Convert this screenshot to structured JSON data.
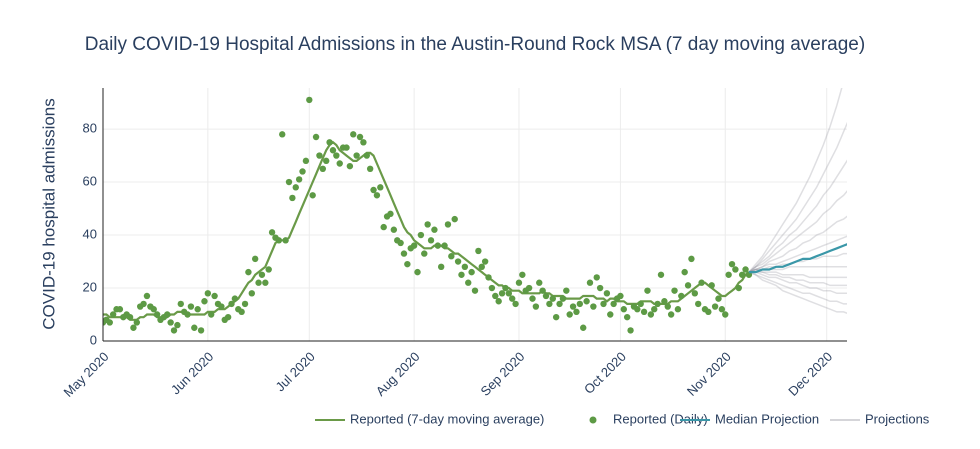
{
  "chart_data": {
    "type": "line",
    "title": "Daily COVID-19 Hospital Admissions in the Austin-Round Rock MSA (7 day moving average)",
    "y_label": "COVID-19 hospital admissions",
    "grid": true,
    "legend": "bottom",
    "xlim": [
      "2020-05-01",
      "2020-12-07"
    ],
    "xticks": [
      {
        "value": "2020-05-01",
        "label": "May 2020"
      },
      {
        "value": "2020-06-01",
        "label": "Jun 2020"
      },
      {
        "value": "2020-07-01",
        "label": "Jul 2020"
      },
      {
        "value": "2020-08-01",
        "label": "Aug 2020"
      },
      {
        "value": "2020-09-01",
        "label": "Sep 2020"
      },
      {
        "value": "2020-10-01",
        "label": "Oct 2020"
      },
      {
        "value": "2020-11-01",
        "label": "Nov 2020"
      },
      {
        "value": "2020-12-01",
        "label": "Dec 2020"
      }
    ],
    "ylim": [
      0,
      95.5
    ],
    "yticks": [
      0,
      20,
      40,
      60,
      80
    ],
    "x": [
      "2020-05-01",
      "2020-05-02",
      "2020-05-03",
      "2020-05-04",
      "2020-05-05",
      "2020-05-06",
      "2020-05-07",
      "2020-05-08",
      "2020-05-09",
      "2020-05-10",
      "2020-05-11",
      "2020-05-12",
      "2020-05-13",
      "2020-05-14",
      "2020-05-15",
      "2020-05-16",
      "2020-05-17",
      "2020-05-18",
      "2020-05-19",
      "2020-05-20",
      "2020-05-21",
      "2020-05-22",
      "2020-05-23",
      "2020-05-24",
      "2020-05-25",
      "2020-05-26",
      "2020-05-27",
      "2020-05-28",
      "2020-05-29",
      "2020-05-30",
      "2020-05-31",
      "2020-06-01",
      "2020-06-02",
      "2020-06-03",
      "2020-06-04",
      "2020-06-05",
      "2020-06-06",
      "2020-06-07",
      "2020-06-08",
      "2020-06-09",
      "2020-06-10",
      "2020-06-11",
      "2020-06-12",
      "2020-06-13",
      "2020-06-14",
      "2020-06-15",
      "2020-06-16",
      "2020-06-17",
      "2020-06-18",
      "2020-06-19",
      "2020-06-20",
      "2020-06-21",
      "2020-06-22",
      "2020-06-23",
      "2020-06-24",
      "2020-06-25",
      "2020-06-26",
      "2020-06-27",
      "2020-06-28",
      "2020-06-29",
      "2020-06-30",
      "2020-07-01",
      "2020-07-02",
      "2020-07-03",
      "2020-07-04",
      "2020-07-05",
      "2020-07-06",
      "2020-07-07",
      "2020-07-08",
      "2020-07-09",
      "2020-07-10",
      "2020-07-11",
      "2020-07-12",
      "2020-07-13",
      "2020-07-14",
      "2020-07-15",
      "2020-07-16",
      "2020-07-17",
      "2020-07-18",
      "2020-07-19",
      "2020-07-20",
      "2020-07-21",
      "2020-07-22",
      "2020-07-23",
      "2020-07-24",
      "2020-07-25",
      "2020-07-26",
      "2020-07-27",
      "2020-07-28",
      "2020-07-29",
      "2020-07-30",
      "2020-07-31",
      "2020-08-01",
      "2020-08-02",
      "2020-08-03",
      "2020-08-04",
      "2020-08-05",
      "2020-08-06",
      "2020-08-07",
      "2020-08-08",
      "2020-08-09",
      "2020-08-10",
      "2020-08-11",
      "2020-08-12",
      "2020-08-13",
      "2020-08-14",
      "2020-08-15",
      "2020-08-16",
      "2020-08-17",
      "2020-08-18",
      "2020-08-19",
      "2020-08-20",
      "2020-08-21",
      "2020-08-22",
      "2020-08-23",
      "2020-08-24",
      "2020-08-25",
      "2020-08-26",
      "2020-08-27",
      "2020-08-28",
      "2020-08-29",
      "2020-08-30",
      "2020-08-31",
      "2020-09-01",
      "2020-09-02",
      "2020-09-03",
      "2020-09-04",
      "2020-09-05",
      "2020-09-06",
      "2020-09-07",
      "2020-09-08",
      "2020-09-09",
      "2020-09-10",
      "2020-09-11",
      "2020-09-12",
      "2020-09-13",
      "2020-09-14",
      "2020-09-15",
      "2020-09-16",
      "2020-09-17",
      "2020-09-18",
      "2020-09-19",
      "2020-09-20",
      "2020-09-21",
      "2020-09-22",
      "2020-09-23",
      "2020-09-24",
      "2020-09-25",
      "2020-09-26",
      "2020-09-27",
      "2020-09-28",
      "2020-09-29",
      "2020-09-30",
      "2020-10-01",
      "2020-10-02",
      "2020-10-03",
      "2020-10-04",
      "2020-10-05",
      "2020-10-06",
      "2020-10-07",
      "2020-10-08",
      "2020-10-09",
      "2020-10-10",
      "2020-10-11",
      "2020-10-12",
      "2020-10-13",
      "2020-10-14",
      "2020-10-15",
      "2020-10-16",
      "2020-10-17",
      "2020-10-18",
      "2020-10-19",
      "2020-10-20",
      "2020-10-21",
      "2020-10-22",
      "2020-10-23",
      "2020-10-24",
      "2020-10-25",
      "2020-10-26",
      "2020-10-27",
      "2020-10-28",
      "2020-10-29",
      "2020-10-30",
      "2020-10-31",
      "2020-11-01",
      "2020-11-02",
      "2020-11-03",
      "2020-11-04",
      "2020-11-05",
      "2020-11-06",
      "2020-11-07",
      "2020-11-08"
    ],
    "series": [
      {
        "name": "Reported (7-day moving average)",
        "type": "line",
        "color": "#6a9a48",
        "values": [
          10,
          10,
          9,
          9,
          9,
          9,
          9,
          9,
          8,
          8,
          8,
          9,
          9,
          10,
          10,
          10,
          9,
          9,
          9,
          9,
          10,
          10,
          11,
          11,
          11,
          10,
          10,
          10,
          10,
          10,
          10,
          11,
          11,
          11,
          12,
          12,
          12,
          13,
          14,
          15,
          16,
          18,
          20,
          22,
          23,
          25,
          26,
          27,
          28,
          31,
          34,
          37,
          38,
          38,
          38,
          39,
          42,
          45,
          48,
          51,
          54,
          57,
          60,
          63,
          66,
          69,
          72,
          74,
          75,
          74,
          72,
          71,
          70,
          69,
          68,
          68,
          69,
          70,
          71,
          71,
          70,
          67,
          64,
          61,
          58,
          55,
          52,
          49,
          46,
          43,
          41,
          40,
          38,
          37,
          36,
          35,
          35,
          35,
          36,
          36,
          36,
          35,
          35,
          34,
          33,
          33,
          32,
          31,
          30,
          29,
          28,
          27,
          26,
          25,
          24,
          23,
          22,
          21,
          21,
          20,
          20,
          19,
          19,
          19,
          18,
          18,
          18,
          18,
          18,
          18,
          19,
          18,
          18,
          17,
          17,
          17,
          17,
          16,
          16,
          16,
          16,
          16,
          17,
          17,
          17,
          17,
          16,
          16,
          16,
          15,
          16,
          16,
          15,
          15,
          15,
          14,
          14,
          14,
          14,
          15,
          15,
          15,
          15,
          14,
          14,
          14,
          14,
          14,
          15,
          15,
          15,
          16,
          17,
          18,
          19,
          20,
          21,
          22,
          22,
          21,
          20,
          19,
          18,
          17,
          17,
          18,
          19,
          20,
          22,
          23,
          25,
          26
        ]
      },
      {
        "name": "Reported (Daily)",
        "type": "scatter",
        "color": "#5d9a45",
        "values": [
          7,
          8,
          7,
          10,
          12,
          12,
          9,
          10,
          9,
          5,
          7,
          13,
          14,
          17,
          13,
          12,
          10,
          8,
          9,
          10,
          7,
          4,
          6,
          14,
          11,
          10,
          13,
          5,
          12,
          4,
          15,
          18,
          10,
          17,
          14,
          13,
          8,
          9,
          14,
          16,
          12,
          11,
          14,
          26,
          18,
          31,
          22,
          25,
          22,
          27,
          41,
          39,
          38,
          78,
          38,
          60,
          54,
          58,
          61,
          64,
          68,
          91,
          55,
          77,
          70,
          65,
          68,
          75,
          72,
          70,
          67,
          73,
          73,
          66,
          78,
          70,
          77,
          75,
          70,
          65,
          57,
          55,
          58,
          43,
          47,
          48,
          42,
          38,
          37,
          33,
          29,
          35,
          36,
          26,
          40,
          33,
          44,
          38,
          42,
          36,
          28,
          36,
          44,
          32,
          46,
          30,
          25,
          28,
          22,
          26,
          19,
          34,
          28,
          30,
          24,
          20,
          17,
          15,
          18,
          20,
          18,
          16,
          14,
          22,
          25,
          19,
          20,
          16,
          13,
          22,
          19,
          17,
          14,
          16,
          9,
          14,
          16,
          19,
          10,
          13,
          11,
          14,
          5,
          15,
          22,
          13,
          24,
          20,
          14,
          18,
          10,
          14,
          16,
          17,
          12,
          9,
          4,
          13,
          12,
          14,
          11,
          19,
          10,
          12,
          14,
          25,
          15,
          13,
          10,
          19,
          12,
          17,
          26,
          21,
          31,
          18,
          14,
          22,
          12,
          11,
          21,
          13,
          16,
          12,
          10,
          25,
          29,
          27,
          20,
          25,
          27,
          25
        ]
      },
      {
        "name": "Median Projection",
        "type": "line",
        "color": "#3a97a8",
        "x": [
          "2020-11-08",
          "2020-11-10",
          "2020-11-12",
          "2020-11-14",
          "2020-11-16",
          "2020-11-18",
          "2020-11-20",
          "2020-11-22",
          "2020-11-24",
          "2020-11-26",
          "2020-11-28",
          "2020-11-30",
          "2020-12-02",
          "2020-12-04",
          "2020-12-06",
          "2020-12-08"
        ],
        "values": [
          26,
          26,
          27,
          27,
          28,
          28,
          29,
          30,
          31,
          31,
          32,
          33,
          34,
          35,
          36,
          37
        ]
      },
      {
        "name": "Projections",
        "type": "lines",
        "color": "rgba(150,150,160,0.3)",
        "x": [
          "2020-11-08",
          "2020-11-10",
          "2020-11-12",
          "2020-11-14",
          "2020-11-16",
          "2020-11-18",
          "2020-11-20",
          "2020-11-22",
          "2020-11-24",
          "2020-11-26",
          "2020-11-28",
          "2020-11-30",
          "2020-12-02",
          "2020-12-04",
          "2020-12-06",
          "2020-12-08"
        ],
        "values": [
          [
            26,
            25,
            23,
            22,
            21,
            19,
            18,
            17,
            16,
            15,
            14,
            13,
            12,
            11,
            11,
            10
          ],
          [
            26,
            25,
            24,
            23,
            22,
            21,
            20,
            19,
            18,
            18,
            17,
            16,
            15,
            15,
            14,
            14
          ],
          [
            26,
            26,
            25,
            24,
            24,
            23,
            22,
            22,
            21,
            20,
            20,
            19,
            19,
            18,
            18,
            18
          ],
          [
            26,
            26,
            26,
            25,
            25,
            24,
            24,
            23,
            23,
            22,
            22,
            22,
            21,
            21,
            21,
            21
          ],
          [
            26,
            27,
            26,
            26,
            26,
            25,
            25,
            25,
            25,
            24,
            24,
            24,
            24,
            24,
            24,
            24
          ],
          [
            26,
            27,
            27,
            27,
            27,
            27,
            28,
            28,
            28,
            28,
            28,
            28,
            28,
            28,
            28,
            28
          ],
          [
            26,
            27,
            27,
            28,
            28,
            29,
            29,
            30,
            30,
            31,
            31,
            32,
            32,
            32,
            33,
            33
          ],
          [
            26,
            27,
            28,
            29,
            29,
            30,
            31,
            32,
            33,
            34,
            35,
            36,
            37,
            38,
            39,
            40
          ],
          [
            26,
            27,
            28,
            30,
            31,
            32,
            34,
            35,
            37,
            38,
            40,
            41,
            43,
            45,
            46,
            48
          ],
          [
            26,
            28,
            29,
            31,
            33,
            35,
            37,
            39,
            41,
            43,
            45,
            48,
            50,
            53,
            55,
            58
          ],
          [
            26,
            28,
            30,
            32,
            35,
            37,
            40,
            42,
            45,
            48,
            51,
            55,
            58,
            62,
            66,
            70
          ],
          [
            26,
            28,
            31,
            34,
            37,
            40,
            43,
            46,
            50,
            54,
            58,
            63,
            68,
            73,
            79,
            85
          ],
          [
            26,
            29,
            32,
            36,
            40,
            44,
            48,
            52,
            57,
            62,
            68,
            74,
            81,
            89,
            98,
            110
          ]
        ]
      }
    ]
  }
}
